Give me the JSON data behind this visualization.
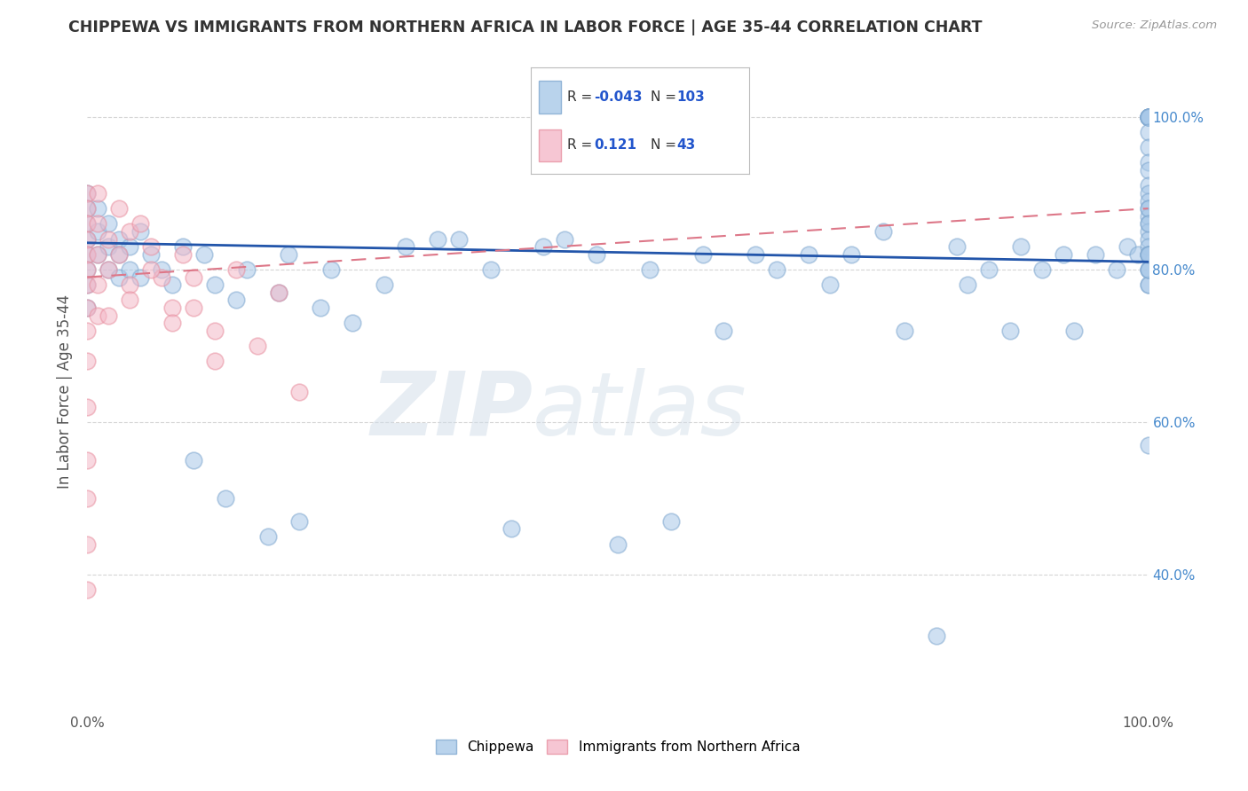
{
  "title": "CHIPPEWA VS IMMIGRANTS FROM NORTHERN AFRICA IN LABOR FORCE | AGE 35-44 CORRELATION CHART",
  "source": "Source: ZipAtlas.com",
  "ylabel": "In Labor Force | Age 35-44",
  "watermark": "ZIPatlas",
  "xlim": [
    0.0,
    1.0
  ],
  "ylim": [
    0.22,
    1.06
  ],
  "ytick_labels": [
    "40.0%",
    "60.0%",
    "80.0%",
    "100.0%"
  ],
  "ytick_values": [
    0.4,
    0.6,
    0.8,
    1.0
  ],
  "xtick_values": [
    0.0,
    0.2,
    0.4,
    0.6,
    0.8,
    1.0
  ],
  "xtick_labels": [
    "0.0%",
    "",
    "",
    "",
    "",
    "100.0%"
  ],
  "legend_R_blue": "-0.043",
  "legend_N_blue": "103",
  "legend_R_pink": "0.121",
  "legend_N_pink": "43",
  "blue_color": "#a8c8e8",
  "pink_color": "#f4b8c8",
  "blue_edge_color": "#80a8d0",
  "pink_edge_color": "#e890a0",
  "blue_line_color": "#2255aa",
  "pink_line_color": "#dd7788",
  "grid_color": "#cccccc",
  "background_color": "#ffffff",
  "blue_scatter_x": [
    0.0,
    0.0,
    0.0,
    0.0,
    0.0,
    0.0,
    0.0,
    0.0,
    0.01,
    0.01,
    0.01,
    0.02,
    0.02,
    0.02,
    0.03,
    0.03,
    0.03,
    0.04,
    0.04,
    0.05,
    0.05,
    0.06,
    0.07,
    0.08,
    0.09,
    0.1,
    0.11,
    0.12,
    0.13,
    0.14,
    0.15,
    0.17,
    0.18,
    0.19,
    0.2,
    0.22,
    0.23,
    0.25,
    0.28,
    0.3,
    0.33,
    0.35,
    0.38,
    0.4,
    0.43,
    0.45,
    0.48,
    0.5,
    0.53,
    0.55,
    0.58,
    0.6,
    0.63,
    0.65,
    0.68,
    0.7,
    0.72,
    0.75,
    0.77,
    0.8,
    0.82,
    0.83,
    0.85,
    0.87,
    0.88,
    0.9,
    0.92,
    0.93,
    0.95,
    0.97,
    0.98,
    0.99,
    1.0,
    1.0,
    1.0,
    1.0,
    1.0,
    1.0,
    1.0,
    1.0,
    1.0,
    1.0,
    1.0,
    1.0,
    1.0,
    1.0,
    1.0,
    1.0,
    1.0,
    1.0,
    1.0,
    1.0,
    1.0,
    1.0,
    1.0,
    1.0,
    1.0,
    1.0,
    1.0,
    1.0,
    1.0,
    1.0,
    1.0,
    1.0,
    1.0
  ],
  "blue_scatter_y": [
    0.9,
    0.88,
    0.86,
    0.84,
    0.82,
    0.8,
    0.78,
    0.75,
    0.88,
    0.85,
    0.82,
    0.86,
    0.83,
    0.8,
    0.84,
    0.82,
    0.79,
    0.83,
    0.8,
    0.85,
    0.79,
    0.82,
    0.8,
    0.78,
    0.83,
    0.55,
    0.82,
    0.78,
    0.5,
    0.76,
    0.8,
    0.45,
    0.77,
    0.82,
    0.47,
    0.75,
    0.8,
    0.73,
    0.78,
    0.83,
    0.84,
    0.84,
    0.8,
    0.46,
    0.83,
    0.84,
    0.82,
    0.44,
    0.8,
    0.47,
    0.82,
    0.72,
    0.82,
    0.8,
    0.82,
    0.78,
    0.82,
    0.85,
    0.72,
    0.32,
    0.83,
    0.78,
    0.8,
    0.72,
    0.83,
    0.8,
    0.82,
    0.72,
    0.82,
    0.8,
    0.83,
    0.82,
    1.0,
    1.0,
    1.0,
    1.0,
    1.0,
    1.0,
    1.0,
    1.0,
    0.98,
    0.96,
    0.94,
    0.93,
    0.91,
    0.9,
    0.89,
    0.88,
    0.87,
    0.86,
    0.85,
    0.84,
    0.83,
    0.82,
    0.8,
    0.78,
    0.82,
    0.88,
    0.78,
    0.82,
    0.8,
    0.86,
    0.57,
    0.82,
    0.8
  ],
  "pink_scatter_x": [
    0.0,
    0.0,
    0.0,
    0.0,
    0.0,
    0.0,
    0.0,
    0.0,
    0.0,
    0.0,
    0.0,
    0.0,
    0.0,
    0.0,
    0.0,
    0.01,
    0.01,
    0.01,
    0.01,
    0.01,
    0.02,
    0.02,
    0.02,
    0.03,
    0.03,
    0.04,
    0.04,
    0.05,
    0.06,
    0.07,
    0.08,
    0.09,
    0.1,
    0.12,
    0.14,
    0.16,
    0.18,
    0.2,
    0.12,
    0.1,
    0.08,
    0.06,
    0.04
  ],
  "pink_scatter_y": [
    0.9,
    0.88,
    0.86,
    0.84,
    0.82,
    0.8,
    0.78,
    0.75,
    0.72,
    0.68,
    0.62,
    0.55,
    0.5,
    0.44,
    0.38,
    0.9,
    0.86,
    0.82,
    0.78,
    0.74,
    0.84,
    0.8,
    0.74,
    0.88,
    0.82,
    0.85,
    0.78,
    0.86,
    0.83,
    0.79,
    0.75,
    0.82,
    0.75,
    0.68,
    0.8,
    0.7,
    0.77,
    0.64,
    0.72,
    0.79,
    0.73,
    0.8,
    0.76
  ]
}
